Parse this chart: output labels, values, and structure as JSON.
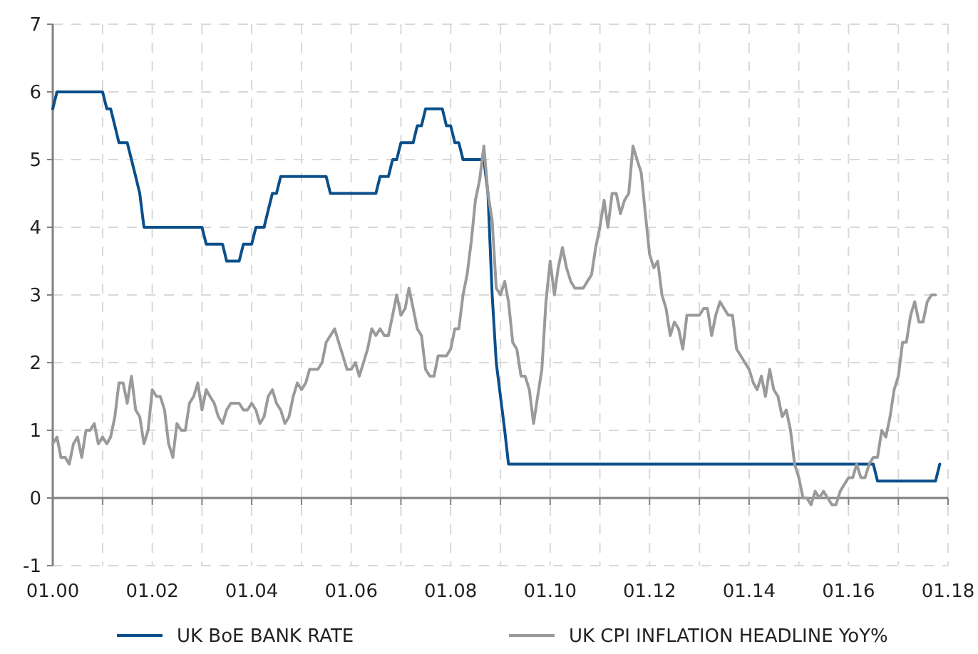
{
  "chart_data": {
    "type": "line",
    "legend": "bottom",
    "grid": true,
    "marker": "none",
    "line_style": "solid",
    "ylim": [
      -1,
      7
    ],
    "yticks": [
      -1,
      0,
      1,
      2,
      3,
      4,
      5,
      6,
      7
    ],
    "xlim": [
      "2000-01",
      "2018-01"
    ],
    "xticks": [
      {
        "value": "2000-01",
        "label": "01.00"
      },
      {
        "value": "2001-01",
        "label": null
      },
      {
        "value": "2002-01",
        "label": "01.02"
      },
      {
        "value": "2003-01",
        "label": null
      },
      {
        "value": "2004-01",
        "label": "01.04"
      },
      {
        "value": "2005-01",
        "label": null
      },
      {
        "value": "2006-01",
        "label": "01.06"
      },
      {
        "value": "2007-01",
        "label": null
      },
      {
        "value": "2008-01",
        "label": "01.08"
      },
      {
        "value": "2009-01",
        "label": null
      },
      {
        "value": "2010-01",
        "label": "01.10"
      },
      {
        "value": "2011-01",
        "label": null
      },
      {
        "value": "2012-01",
        "label": "01.12"
      },
      {
        "value": "2013-01",
        "label": null
      },
      {
        "value": "2014-01",
        "label": "01.14"
      },
      {
        "value": "2015-01",
        "label": null
      },
      {
        "value": "2016-01",
        "label": "01.16"
      },
      {
        "value": "2017-01",
        "label": null
      },
      {
        "value": "2018-01",
        "label": "01.18"
      }
    ],
    "x": [
      "2000-01",
      "2000-02",
      "2000-03",
      "2000-04",
      "2000-05",
      "2000-06",
      "2000-07",
      "2000-08",
      "2000-09",
      "2000-10",
      "2000-11",
      "2000-12",
      "2001-01",
      "2001-02",
      "2001-03",
      "2001-04",
      "2001-05",
      "2001-06",
      "2001-07",
      "2001-08",
      "2001-09",
      "2001-10",
      "2001-11",
      "2001-12",
      "2002-01",
      "2002-02",
      "2002-03",
      "2002-04",
      "2002-05",
      "2002-06",
      "2002-07",
      "2002-08",
      "2002-09",
      "2002-10",
      "2002-11",
      "2002-12",
      "2003-01",
      "2003-02",
      "2003-03",
      "2003-04",
      "2003-05",
      "2003-06",
      "2003-07",
      "2003-08",
      "2003-09",
      "2003-10",
      "2003-11",
      "2003-12",
      "2004-01",
      "2004-02",
      "2004-03",
      "2004-04",
      "2004-05",
      "2004-06",
      "2004-07",
      "2004-08",
      "2004-09",
      "2004-10",
      "2004-11",
      "2004-12",
      "2005-01",
      "2005-02",
      "2005-03",
      "2005-04",
      "2005-05",
      "2005-06",
      "2005-07",
      "2005-08",
      "2005-09",
      "2005-10",
      "2005-11",
      "2005-12",
      "2006-01",
      "2006-02",
      "2006-03",
      "2006-04",
      "2006-05",
      "2006-06",
      "2006-07",
      "2006-08",
      "2006-09",
      "2006-10",
      "2006-11",
      "2006-12",
      "2007-01",
      "2007-02",
      "2007-03",
      "2007-04",
      "2007-05",
      "2007-06",
      "2007-07",
      "2007-08",
      "2007-09",
      "2007-10",
      "2007-11",
      "2007-12",
      "2008-01",
      "2008-02",
      "2008-03",
      "2008-04",
      "2008-05",
      "2008-06",
      "2008-07",
      "2008-08",
      "2008-09",
      "2008-10",
      "2008-11",
      "2008-12",
      "2009-01",
      "2009-02",
      "2009-03",
      "2009-04",
      "2009-05",
      "2009-06",
      "2009-07",
      "2009-08",
      "2009-09",
      "2009-10",
      "2009-11",
      "2009-12",
      "2010-01",
      "2010-02",
      "2010-03",
      "2010-04",
      "2010-05",
      "2010-06",
      "2010-07",
      "2010-08",
      "2010-09",
      "2010-10",
      "2010-11",
      "2010-12",
      "2011-01",
      "2011-02",
      "2011-03",
      "2011-04",
      "2011-05",
      "2011-06",
      "2011-07",
      "2011-08",
      "2011-09",
      "2011-10",
      "2011-11",
      "2011-12",
      "2012-01",
      "2012-02",
      "2012-03",
      "2012-04",
      "2012-05",
      "2012-06",
      "2012-07",
      "2012-08",
      "2012-09",
      "2012-10",
      "2012-11",
      "2012-12",
      "2013-01",
      "2013-02",
      "2013-03",
      "2013-04",
      "2013-05",
      "2013-06",
      "2013-07",
      "2013-08",
      "2013-09",
      "2013-10",
      "2013-11",
      "2013-12",
      "2014-01",
      "2014-02",
      "2014-03",
      "2014-04",
      "2014-05",
      "2014-06",
      "2014-07",
      "2014-08",
      "2014-09",
      "2014-10",
      "2014-11",
      "2014-12",
      "2015-01",
      "2015-02",
      "2015-03",
      "2015-04",
      "2015-05",
      "2015-06",
      "2015-07",
      "2015-08",
      "2015-09",
      "2015-10",
      "2015-11",
      "2015-12",
      "2016-01",
      "2016-02",
      "2016-03",
      "2016-04",
      "2016-05",
      "2016-06",
      "2016-07",
      "2016-08",
      "2016-09",
      "2016-10",
      "2016-11",
      "2016-12",
      "2017-01",
      "2017-02",
      "2017-03",
      "2017-04",
      "2017-05",
      "2017-06",
      "2017-07",
      "2017-08",
      "2017-09",
      "2017-10"
    ],
    "series": [
      {
        "name": "UK BoE BANK RATE",
        "color": "#0b4f8a",
        "x": [
          "2000-01",
          "2000-02",
          "2001-01",
          "2001-02",
          "2001-03",
          "2001-04",
          "2001-05",
          "2001-07",
          "2001-08",
          "2001-09",
          "2001-10",
          "2001-11",
          "2003-01",
          "2003-02",
          "2003-06",
          "2003-07",
          "2003-10",
          "2003-11",
          "2004-01",
          "2004-02",
          "2004-04",
          "2004-05",
          "2004-06",
          "2004-07",
          "2004-08",
          "2005-07",
          "2005-08",
          "2006-07",
          "2006-08",
          "2006-10",
          "2006-11",
          "2006-12",
          "2007-01",
          "2007-04",
          "2007-05",
          "2007-06",
          "2007-07",
          "2007-11",
          "2007-12",
          "2008-01",
          "2008-02",
          "2008-03",
          "2008-04",
          "2008-09",
          "2008-10",
          "2008-11",
          "2008-12",
          "2009-01",
          "2009-02",
          "2009-03",
          "2016-07",
          "2016-08",
          "2017-10",
          "2017-11"
        ],
        "values": [
          5.75,
          6,
          6,
          5.75,
          5.75,
          5.5,
          5.25,
          5.25,
          5,
          4.75,
          4.5,
          4,
          4,
          3.75,
          3.75,
          3.5,
          3.5,
          3.75,
          3.75,
          4,
          4,
          4.25,
          4.5,
          4.5,
          4.75,
          4.75,
          4.5,
          4.5,
          4.75,
          4.75,
          5,
          5,
          5.25,
          5.25,
          5.5,
          5.5,
          5.75,
          5.75,
          5.5,
          5.5,
          5.25,
          5.25,
          5,
          5,
          4.5,
          3,
          2,
          1.5,
          1,
          0.5,
          0.5,
          0.25,
          0.25,
          0.5
        ]
      },
      {
        "name": "UK CPI INFLATION HEADLINE YoY%",
        "color": "#9a9a9a",
        "values": [
          0.8,
          0.9,
          0.6,
          0.6,
          0.5,
          0.8,
          0.9,
          0.6,
          1.0,
          1.0,
          1.1,
          0.8,
          0.9,
          0.8,
          0.9,
          1.2,
          1.7,
          1.7,
          1.4,
          1.8,
          1.3,
          1.2,
          0.8,
          1.0,
          1.6,
          1.5,
          1.5,
          1.3,
          0.8,
          0.6,
          1.1,
          1.0,
          1.0,
          1.4,
          1.5,
          1.7,
          1.3,
          1.6,
          1.5,
          1.4,
          1.2,
          1.1,
          1.3,
          1.4,
          1.4,
          1.4,
          1.3,
          1.3,
          1.4,
          1.3,
          1.1,
          1.2,
          1.5,
          1.6,
          1.4,
          1.3,
          1.1,
          1.2,
          1.5,
          1.7,
          1.6,
          1.7,
          1.9,
          1.9,
          1.9,
          2.0,
          2.3,
          2.4,
          2.5,
          2.3,
          2.1,
          1.9,
          1.9,
          2.0,
          1.8,
          2.0,
          2.2,
          2.5,
          2.4,
          2.5,
          2.4,
          2.4,
          2.7,
          3.0,
          2.7,
          2.8,
          3.1,
          2.8,
          2.5,
          2.4,
          1.9,
          1.8,
          1.8,
          2.1,
          2.1,
          2.1,
          2.2,
          2.5,
          2.5,
          3.0,
          3.3,
          3.8,
          4.4,
          4.7,
          5.2,
          4.5,
          4.1,
          3.1,
          3.0,
          3.2,
          2.9,
          2.3,
          2.2,
          1.8,
          1.8,
          1.6,
          1.1,
          1.5,
          1.9,
          2.9,
          3.5,
          3.0,
          3.4,
          3.7,
          3.4,
          3.2,
          3.1,
          3.1,
          3.1,
          3.2,
          3.3,
          3.7,
          4.0,
          4.4,
          4.0,
          4.5,
          4.5,
          4.2,
          4.4,
          4.5,
          5.2,
          5.0,
          4.8,
          4.2,
          3.6,
          3.4,
          3.5,
          3.0,
          2.8,
          2.4,
          2.6,
          2.5,
          2.2,
          2.7,
          2.7,
          2.7,
          2.7,
          2.8,
          2.8,
          2.4,
          2.7,
          2.9,
          2.8,
          2.7,
          2.7,
          2.2,
          2.1,
          2.0,
          1.9,
          1.7,
          1.6,
          1.8,
          1.5,
          1.9,
          1.6,
          1.5,
          1.2,
          1.3,
          1.0,
          0.5,
          0.3,
          0.0,
          0.0,
          -0.1,
          0.1,
          0.0,
          0.1,
          0.0,
          -0.1,
          -0.1,
          0.1,
          0.2,
          0.3,
          0.3,
          0.5,
          0.3,
          0.3,
          0.5,
          0.6,
          0.6,
          1.0,
          0.9,
          1.2,
          1.6,
          1.8,
          2.3,
          2.3,
          2.7,
          2.9,
          2.6,
          2.6,
          2.9,
          3.0,
          3.0
        ]
      }
    ]
  }
}
